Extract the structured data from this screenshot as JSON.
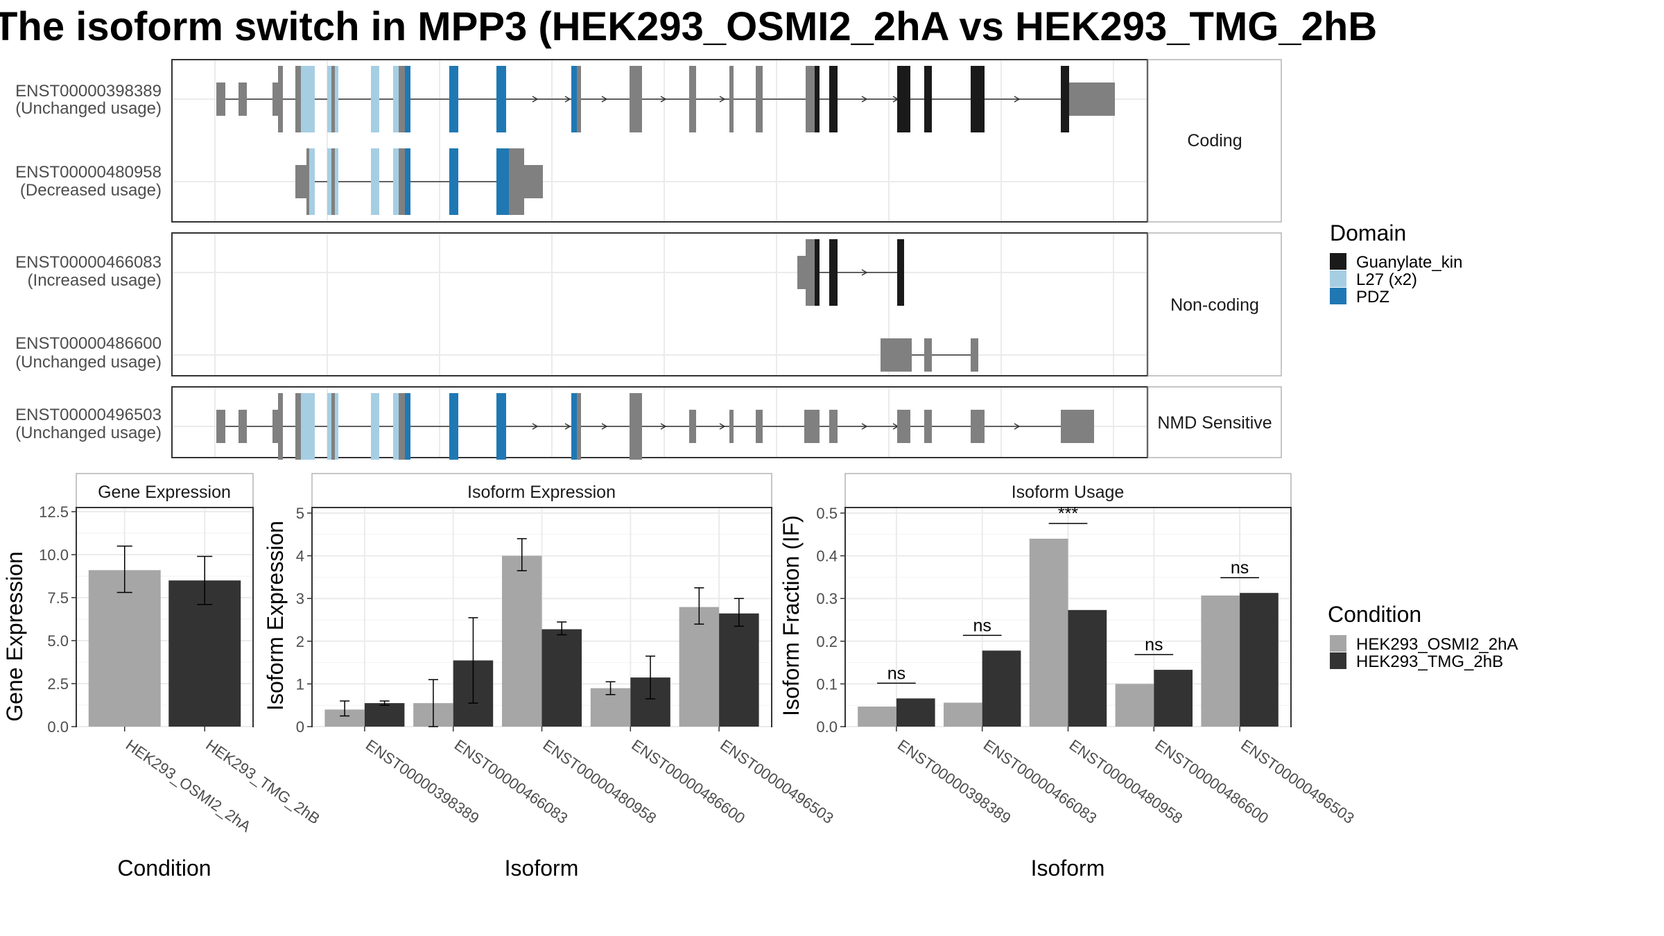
{
  "title": "The isoform switch in MPP3 (HEK293_OSMI2_2hA vs HEK293_TMG_2hB",
  "colors": {
    "gene_model_exon": "#808080",
    "domains": {
      "Guanylate_kin": "#1a1a1a",
      "L27 (x2)": "#a6cee3",
      "PDZ": "#1f78b4"
    },
    "conditions": {
      "HEK293_OSMI2_2hA": "#a6a6a6",
      "HEK293_TMG_2hB": "#333333"
    }
  },
  "transcript_panel": {
    "facets": [
      {
        "label": "Coding",
        "transcripts": [
          {
            "id": "ENST00000398389",
            "status": "(Unchanged usage)"
          },
          {
            "id": "ENST00000480958",
            "status": "(Decreased usage)"
          }
        ]
      },
      {
        "label": "Non-coding",
        "transcripts": [
          {
            "id": "ENST00000466083",
            "status": "(Increased usage)"
          },
          {
            "id": "ENST00000486600",
            "status": "(Unchanged usage)"
          }
        ]
      },
      {
        "label": "NMD Sensitive",
        "transcripts": [
          {
            "id": "ENST00000496503",
            "status": "(Unchanged usage)"
          }
        ]
      }
    ]
  },
  "legend_domain": {
    "title": "Domain",
    "items": [
      {
        "label": "Guanylate_kin",
        "color": "#1a1a1a"
      },
      {
        "label": "L27 (x2)",
        "color": "#a6cee3"
      },
      {
        "label": "PDZ",
        "color": "#1f78b4"
      }
    ]
  },
  "legend_condition": {
    "title": "Condition",
    "items": [
      {
        "label": "HEK293_OSMI2_2hA",
        "color": "#a6a6a6"
      },
      {
        "label": "HEK293_TMG_2hB",
        "color": "#333333"
      }
    ]
  },
  "chart_data": [
    {
      "type": "bar",
      "title": "Gene Expression",
      "xlabel": "Condition",
      "ylabel": "Gene Expression",
      "ylim": [
        0,
        12.5
      ],
      "yticks": [
        "0.0",
        "2.5",
        "5.0",
        "7.5",
        "10.0",
        "12.5"
      ],
      "categories": [
        "HEK293_OSMI2_2hA",
        "HEK293_TMG_2hB"
      ],
      "values": [
        9.1,
        8.5
      ],
      "error": [
        [
          7.8,
          10.5
        ],
        [
          7.1,
          9.9
        ]
      ]
    },
    {
      "type": "bar",
      "title": "Isoform Expression",
      "xlabel": "Isoform",
      "ylabel": "Isoform Expression",
      "ylim": [
        0,
        5
      ],
      "yticks": [
        "0",
        "1",
        "2",
        "3",
        "4",
        "5"
      ],
      "categories": [
        "ENST00000398389",
        "ENST00000466083",
        "ENST00000480958",
        "ENST00000486600",
        "ENST00000496503"
      ],
      "series": [
        {
          "name": "HEK293_OSMI2_2hA",
          "values": [
            0.4,
            0.55,
            4.0,
            0.9,
            2.8
          ],
          "error": [
            [
              0.25,
              0.6
            ],
            [
              0.0,
              1.1
            ],
            [
              3.65,
              4.4
            ],
            [
              0.75,
              1.05
            ],
            [
              2.4,
              3.25
            ]
          ]
        },
        {
          "name": "HEK293_TMG_2hB",
          "values": [
            0.55,
            1.55,
            2.28,
            1.15,
            2.65
          ],
          "error": [
            [
              0.5,
              0.6
            ],
            [
              0.55,
              2.55
            ],
            [
              2.15,
              2.45
            ],
            [
              0.65,
              1.65
            ],
            [
              2.35,
              3.0
            ]
          ]
        }
      ]
    },
    {
      "type": "bar",
      "title": "Isoform Usage",
      "xlabel": "Isoform",
      "ylabel": "Isoform Fraction (IF)",
      "ylim": [
        0,
        0.5
      ],
      "yticks": [
        "0.0",
        "0.1",
        "0.2",
        "0.3",
        "0.4",
        "0.5"
      ],
      "categories": [
        "ENST00000398389",
        "ENST00000466083",
        "ENST00000480958",
        "ENST00000486600",
        "ENST00000496503"
      ],
      "series": [
        {
          "name": "HEK293_OSMI2_2hA",
          "values": [
            0.047,
            0.056,
            0.44,
            0.1,
            0.307
          ]
        },
        {
          "name": "HEK293_TMG_2hB",
          "values": [
            0.066,
            0.178,
            0.273,
            0.133,
            0.313
          ]
        }
      ],
      "significance": [
        "ns",
        "ns",
        "***",
        "ns",
        "ns"
      ]
    }
  ]
}
